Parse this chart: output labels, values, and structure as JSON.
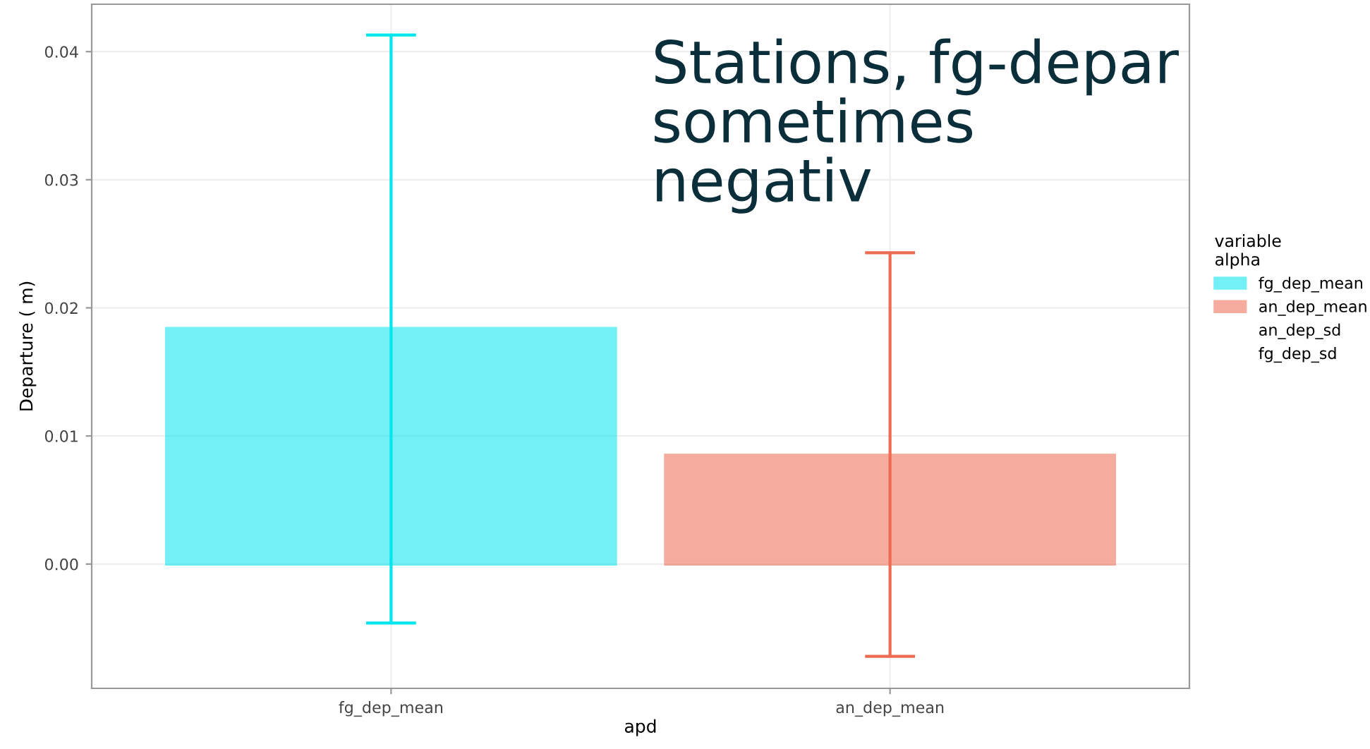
{
  "chart_data": {
    "type": "bar",
    "xlabel": "apd",
    "ylabel": "Departure ( m)",
    "legend_title": "variable\nalpha",
    "categories": [
      "fg_dep_mean",
      "an_dep_mean"
    ],
    "series": [
      {
        "name": "fg_dep_mean",
        "color": "#00e5ee",
        "values": [
          0.0184,
          null
        ],
        "errors": [
          [
            -0.0046,
            0.0413
          ],
          null
        ]
      },
      {
        "name": "an_dep_mean",
        "color": "#ee6a50",
        "values": [
          null,
          0.0085
        ],
        "errors": [
          null,
          [
            -0.0072,
            0.0243
          ]
        ]
      },
      {
        "name": "an_dep_sd",
        "color": null,
        "values": [
          null,
          null
        ]
      },
      {
        "name": "fg_dep_sd",
        "color": null,
        "values": [
          null,
          null
        ]
      }
    ],
    "ylim": [
      -0.0097,
      0.0437
    ],
    "yticks": [
      {
        "value": 0,
        "label": "0.00"
      },
      0.01,
      0.02,
      0.03,
      0.04
    ],
    "grid": true,
    "legend": "right",
    "annotations": [
      "Stations, fg-depar\nsometimes\nnegativ"
    ]
  }
}
